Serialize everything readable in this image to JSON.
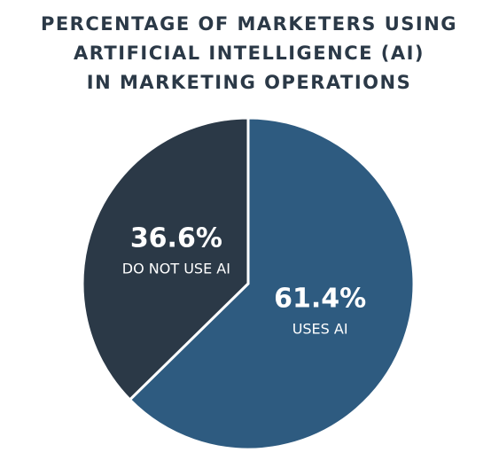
{
  "chart_data": {
    "type": "pie",
    "title": [
      "PERCENTAGE OF MARKETERS USING",
      "ARTIFICIAL INTELLIGENCE (AI)",
      "IN MARKETING OPERATIONS"
    ],
    "categories": [
      "USES AI",
      "DO NOT USE AI"
    ],
    "values": [
      61.4,
      36.6
    ],
    "value_labels": [
      "61.4%",
      "36.6%"
    ],
    "colors": [
      "#2e5b80",
      "#2b3947"
    ]
  }
}
